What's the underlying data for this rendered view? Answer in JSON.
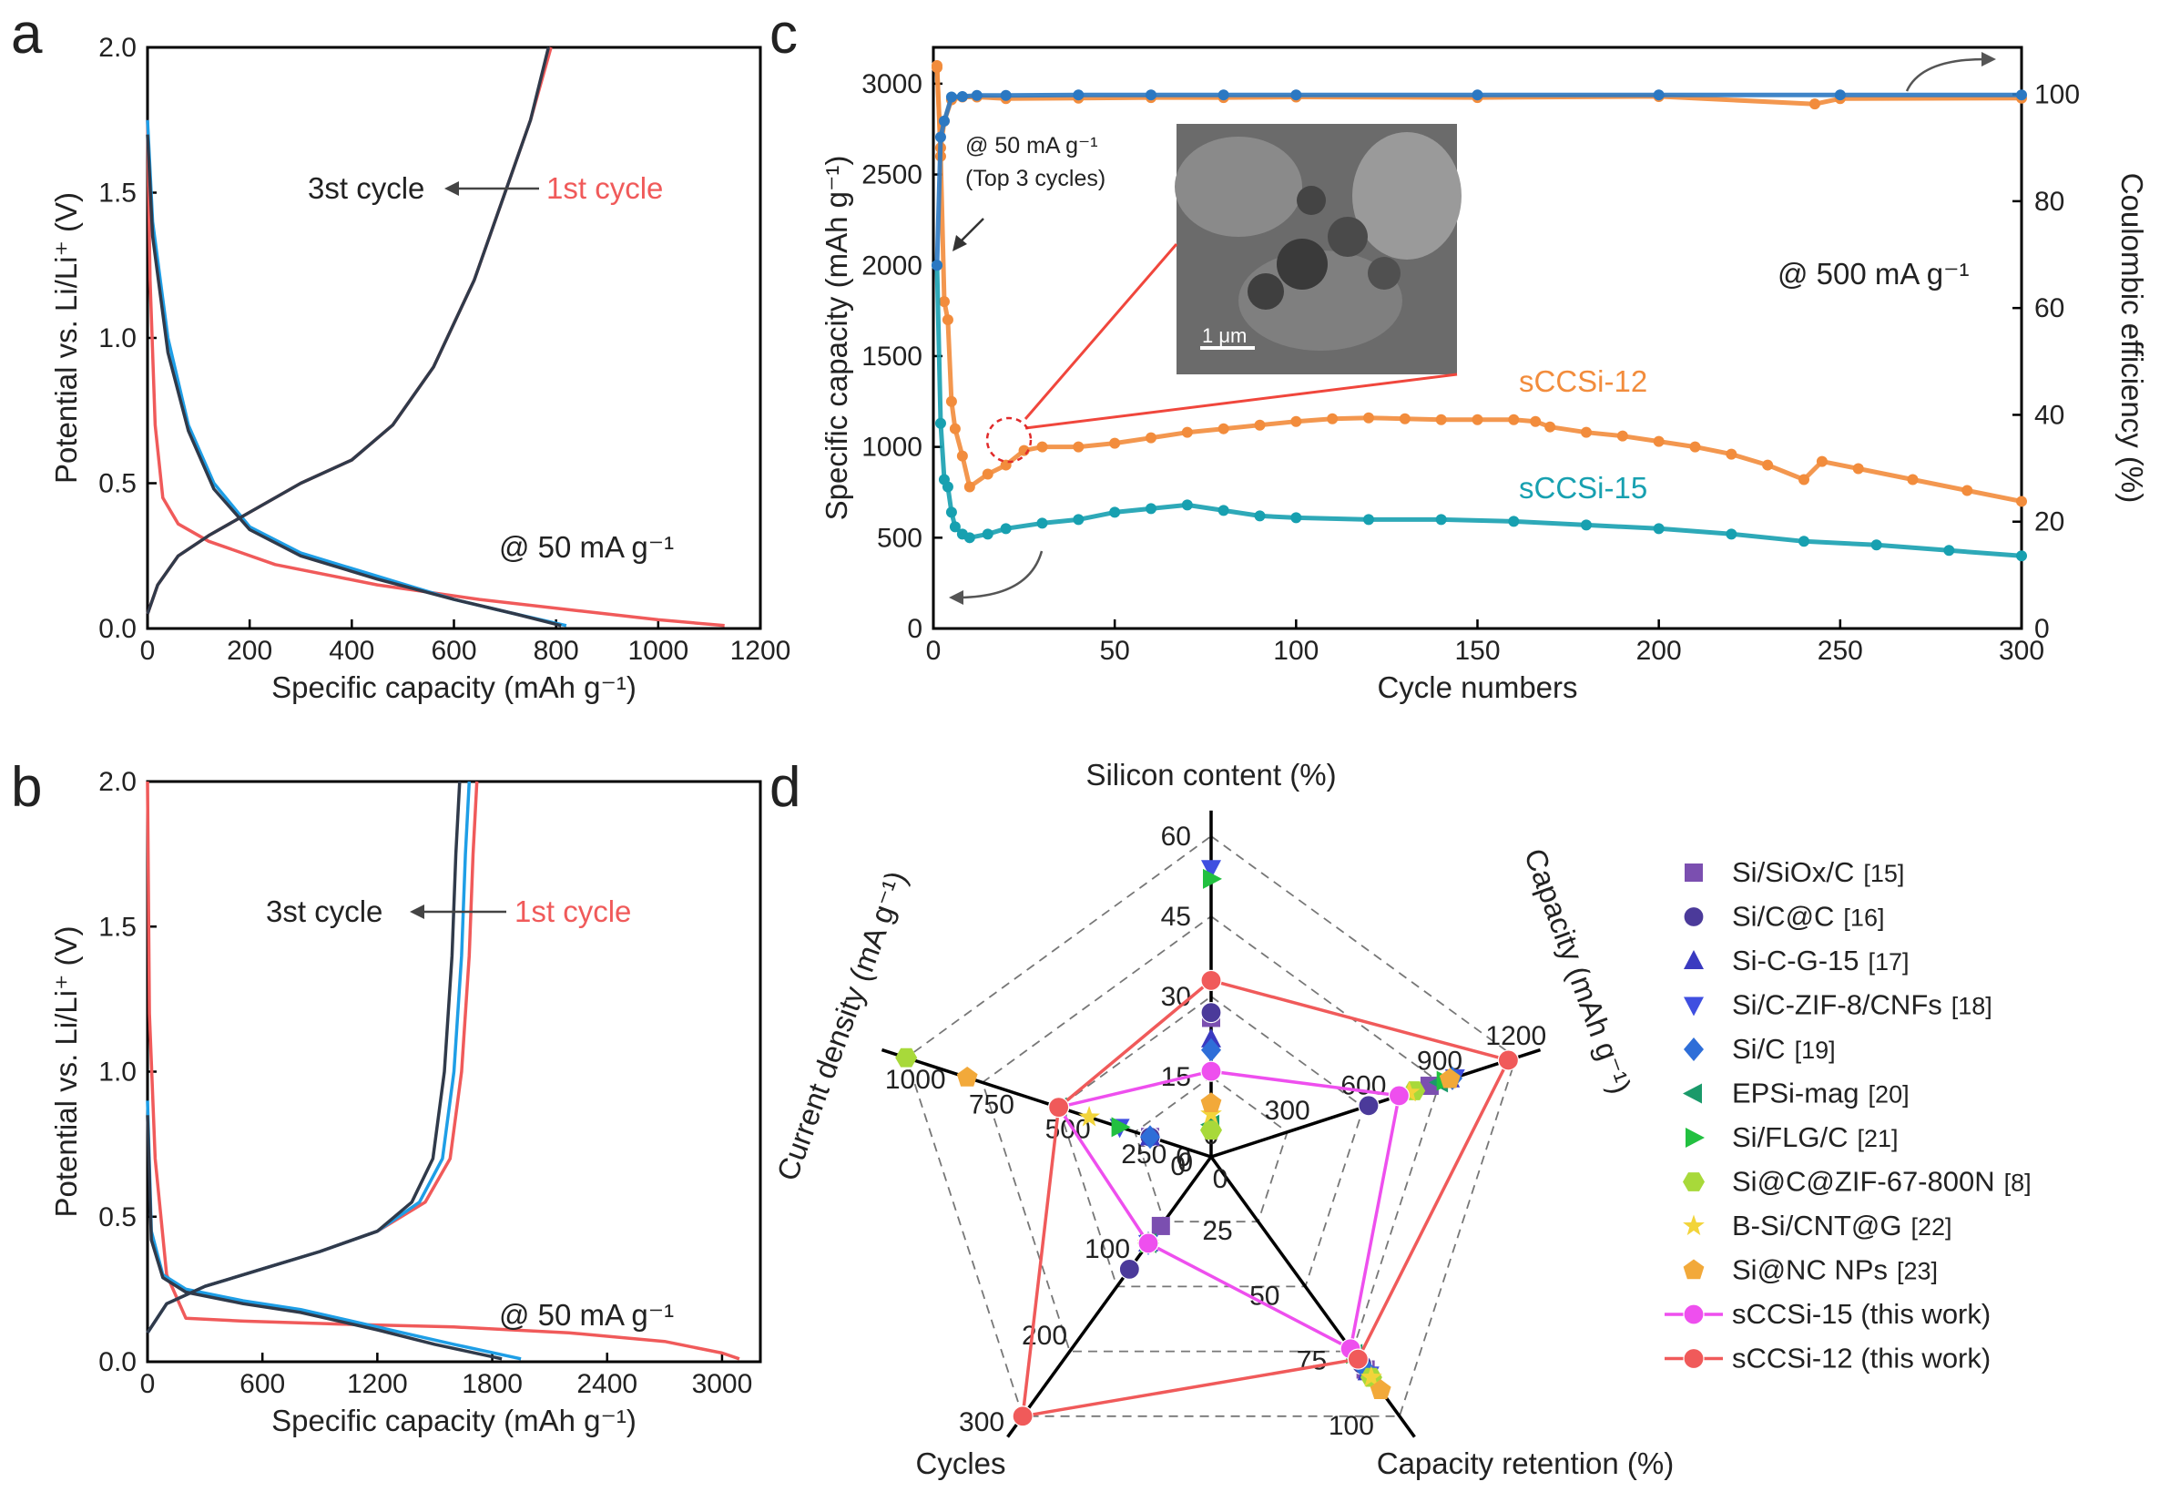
{
  "figure": {
    "panels": [
      "a",
      "b",
      "c",
      "d"
    ]
  },
  "chart_data": [
    {
      "panel": "a",
      "type": "line",
      "xlabel": "Specific capacity (mAh g⁻¹)",
      "ylabel": "Potential vs. Li/Li⁺ (V)",
      "xlim": [
        0,
        1200
      ],
      "ylim": [
        0,
        2.0
      ],
      "xticks": [
        0,
        200,
        400,
        600,
        800,
        1000,
        1200
      ],
      "xtick_labels": [
        "0",
        "200",
        "400",
        "600",
        "800",
        "1000",
        "1200"
      ],
      "yticks": [
        0.0,
        0.5,
        1.0,
        1.5,
        2.0
      ],
      "ytick_labels": [
        "0.0",
        "0.5",
        "1.0",
        "1.5",
        "2.0"
      ],
      "annotations": {
        "third": "3st cycle",
        "first": "1st cycle",
        "rate": "@ 50 mA g⁻¹"
      },
      "series": [
        {
          "name": "1st cycle discharge",
          "color": "#f05a5a",
          "x": [
            0,
            5,
            15,
            30,
            60,
            120,
            250,
            450,
            650,
            850,
            1000,
            1130
          ],
          "y": [
            1.75,
            1.2,
            0.7,
            0.45,
            0.36,
            0.3,
            0.22,
            0.15,
            0.1,
            0.06,
            0.03,
            0.01
          ]
        },
        {
          "name": "1st cycle charge",
          "color": "#f05a5a",
          "x": [
            0,
            20,
            60,
            120,
            200,
            300,
            400,
            480,
            560,
            640,
            700,
            750,
            790
          ],
          "y": [
            0.05,
            0.15,
            0.25,
            0.32,
            0.4,
            0.5,
            0.58,
            0.7,
            0.9,
            1.2,
            1.5,
            1.75,
            2.0
          ]
        },
        {
          "name": "3rd cycle discharge",
          "color": "#1e9ee6",
          "x": [
            0,
            10,
            40,
            80,
            130,
            200,
            300,
            450,
            600,
            720,
            820
          ],
          "y": [
            1.75,
            1.4,
            1.0,
            0.7,
            0.5,
            0.35,
            0.26,
            0.18,
            0.1,
            0.05,
            0.01
          ]
        },
        {
          "name": "3rd cycle charge",
          "color": "#303a4a",
          "x": [
            0,
            20,
            60,
            120,
            200,
            300,
            400,
            480,
            560,
            640,
            700,
            750,
            785
          ],
          "y": [
            0.05,
            0.15,
            0.25,
            0.32,
            0.4,
            0.5,
            0.58,
            0.7,
            0.9,
            1.2,
            1.5,
            1.75,
            2.0
          ]
        },
        {
          "name": "2nd cycle discharge",
          "color": "#303a4a",
          "x": [
            0,
            10,
            40,
            80,
            130,
            200,
            300,
            450,
            600,
            720,
            810
          ],
          "y": [
            1.7,
            1.35,
            0.95,
            0.68,
            0.48,
            0.34,
            0.25,
            0.17,
            0.1,
            0.05,
            0.01
          ]
        }
      ]
    },
    {
      "panel": "b",
      "type": "line",
      "xlabel": "Specific capacity (mAh g⁻¹)",
      "ylabel": "Potential vs. Li/Li⁺ (V)",
      "xlim": [
        0,
        3200
      ],
      "ylim": [
        0,
        2.0
      ],
      "xticks": [
        0,
        600,
        1200,
        1800,
        2400,
        3000
      ],
      "xtick_labels": [
        "0",
        "600",
        "1200",
        "1800",
        "2400",
        "3000"
      ],
      "yticks": [
        0.0,
        0.5,
        1.0,
        1.5,
        2.0
      ],
      "ytick_labels": [
        "0.0",
        "0.5",
        "1.0",
        "1.5",
        "2.0"
      ],
      "annotations": {
        "third": "3st cycle",
        "first": "1st cycle",
        "rate": "@ 50 mA g⁻¹"
      },
      "series": [
        {
          "name": "1st cycle discharge",
          "color": "#f05a5a",
          "x": [
            0,
            10,
            40,
            100,
            200,
            500,
            1000,
            1600,
            2200,
            2700,
            3000,
            3090
          ],
          "y": [
            2.0,
            1.2,
            0.7,
            0.3,
            0.15,
            0.14,
            0.13,
            0.12,
            0.1,
            0.07,
            0.03,
            0.01
          ]
        },
        {
          "name": "1st cycle charge",
          "color": "#f05a5a",
          "x": [
            0,
            100,
            300,
            600,
            900,
            1200,
            1450,
            1580,
            1640,
            1680,
            1700,
            1720
          ],
          "y": [
            0.1,
            0.2,
            0.26,
            0.32,
            0.38,
            0.45,
            0.55,
            0.7,
            1.0,
            1.4,
            1.75,
            2.0
          ]
        },
        {
          "name": "3rd cycle discharge",
          "color": "#1e9ee6",
          "x": [
            0,
            20,
            80,
            200,
            500,
            800,
            1200,
            1600,
            1950
          ],
          "y": [
            0.9,
            0.45,
            0.3,
            0.25,
            0.21,
            0.18,
            0.12,
            0.06,
            0.01
          ]
        },
        {
          "name": "3rd cycle charge",
          "color": "#1e9ee6",
          "x": [
            0,
            100,
            300,
            600,
            900,
            1200,
            1420,
            1540,
            1600,
            1640,
            1660,
            1680
          ],
          "y": [
            0.1,
            0.2,
            0.26,
            0.32,
            0.38,
            0.45,
            0.55,
            0.7,
            1.0,
            1.4,
            1.75,
            2.0
          ]
        },
        {
          "name": "2nd cycle charge",
          "color": "#303a4a",
          "x": [
            0,
            100,
            300,
            600,
            900,
            1200,
            1380,
            1490,
            1550,
            1590,
            1610,
            1630
          ],
          "y": [
            0.1,
            0.2,
            0.26,
            0.32,
            0.38,
            0.45,
            0.55,
            0.7,
            1.0,
            1.4,
            1.75,
            2.0
          ]
        },
        {
          "name": "2nd cycle discharge",
          "color": "#303a4a",
          "x": [
            0,
            20,
            80,
            200,
            500,
            800,
            1200,
            1500,
            1850
          ],
          "y": [
            0.85,
            0.42,
            0.29,
            0.24,
            0.2,
            0.17,
            0.11,
            0.06,
            0.01
          ]
        }
      ]
    },
    {
      "panel": "c",
      "type": "scatter",
      "xlabel": "Cycle numbers",
      "ylabel": "Specific capacity (mAh g⁻¹)",
      "y2label": "Coulombic efficiency (%)",
      "xlim": [
        0,
        300
      ],
      "ylim": [
        0,
        3200
      ],
      "y2lim": [
        0,
        108.8
      ],
      "xticks": [
        0,
        50,
        100,
        150,
        200,
        250,
        300
      ],
      "xtick_labels": [
        "0",
        "50",
        "100",
        "150",
        "200",
        "250",
        "300"
      ],
      "yticks": [
        0,
        500,
        1000,
        1500,
        2000,
        2500,
        3000
      ],
      "ytick_labels": [
        "0",
        "500",
        "1000",
        "1500",
        "2000",
        "2500",
        "3000"
      ],
      "y2ticks": [
        0,
        20,
        40,
        60,
        80,
        100
      ],
      "y2tick_labels": [
        "0",
        "20",
        "40",
        "60",
        "80",
        "100"
      ],
      "annotations": {
        "low_rate": "@ 50 mA g⁻¹",
        "top3": "(Top 3 cycles)",
        "high_rate": "@ 500 mA g⁻¹",
        "label_12": "sCCSi-12",
        "label_15": "sCCSi-15",
        "scale_bar": "1 μm"
      },
      "series": [
        {
          "name": "sCCSi-12 capacity",
          "color": "#f28c3c",
          "x": [
            1,
            2,
            3,
            4,
            5,
            6,
            8,
            10,
            15,
            20,
            25,
            30,
            40,
            50,
            60,
            70,
            80,
            90,
            100,
            110,
            120,
            130,
            140,
            150,
            160,
            166,
            170,
            180,
            190,
            200,
            210,
            220,
            230,
            240,
            245,
            255,
            270,
            285,
            300
          ],
          "y": [
            3100,
            2600,
            1800,
            1700,
            1250,
            1100,
            950,
            780,
            850,
            900,
            980,
            1000,
            1000,
            1020,
            1050,
            1080,
            1100,
            1120,
            1140,
            1155,
            1160,
            1155,
            1150,
            1150,
            1150,
            1140,
            1110,
            1080,
            1060,
            1030,
            1000,
            960,
            900,
            820,
            920,
            880,
            820,
            760,
            700
          ]
        },
        {
          "name": "sCCSi-15 capacity",
          "color": "#17a0b0",
          "x": [
            1,
            2,
            3,
            4,
            5,
            6,
            8,
            10,
            15,
            20,
            30,
            40,
            50,
            60,
            70,
            80,
            90,
            100,
            120,
            140,
            160,
            180,
            200,
            220,
            240,
            260,
            280,
            300
          ],
          "y": [
            2000,
            1130,
            820,
            780,
            640,
            560,
            520,
            500,
            520,
            550,
            580,
            600,
            640,
            660,
            680,
            650,
            620,
            610,
            600,
            600,
            590,
            570,
            550,
            520,
            480,
            460,
            430,
            400
          ]
        },
        {
          "name": "sCCSi-12 CE",
          "axis": "y2",
          "color": "#f28c3c",
          "x": [
            1,
            2,
            3,
            5,
            8,
            12,
            20,
            40,
            60,
            80,
            100,
            150,
            200,
            243,
            250,
            300
          ],
          "y": [
            105,
            90,
            95,
            99,
            99.5,
            99.5,
            99.2,
            99.3,
            99.4,
            99.4,
            99.5,
            99.4,
            99.6,
            98.2,
            99.2,
            99.3
          ]
        },
        {
          "name": "sCCSi-15 CE",
          "axis": "y2",
          "color": "#2b78c2",
          "x": [
            1,
            2,
            3,
            5,
            8,
            12,
            20,
            40,
            60,
            80,
            100,
            150,
            200,
            250,
            300
          ],
          "y": [
            68,
            92,
            95,
            99.5,
            99.6,
            99.8,
            99.8,
            99.9,
            99.9,
            99.9,
            99.9,
            99.9,
            99.9,
            99.9,
            99.9
          ]
        }
      ]
    },
    {
      "panel": "d",
      "type": "radar",
      "axes": [
        {
          "name": "Silicon content (%)",
          "max": 60,
          "ticks": [
            "0",
            "15",
            "30",
            "45",
            "60"
          ]
        },
        {
          "name": "Capacity (mAh g⁻¹)",
          "max": 1200,
          "ticks": [
            "0",
            "300",
            "600",
            "900",
            "1200"
          ]
        },
        {
          "name": "Capacity retention (%)",
          "max": 100,
          "ticks": [
            "0",
            "25",
            "50",
            "75",
            "100"
          ]
        },
        {
          "name": "Cycles",
          "max": 300,
          "ticks": [
            "0",
            "100",
            "200",
            "300"
          ]
        },
        {
          "name": "Current density (mA g⁻¹)",
          "max": 1000,
          "ticks": [
            "0",
            "250",
            "500",
            "750",
            "1000"
          ]
        }
      ],
      "series": [
        {
          "name": "Si/SiOx/C",
          "ref": "[15]",
          "marker": "square",
          "color": "#7b4fb0",
          "values": [
            26,
            860,
            82,
            80,
            200
          ]
        },
        {
          "name": "Si/C@C",
          "ref": "[16]",
          "marker": "circle",
          "color": "#4b3a9a",
          "values": [
            27,
            620,
            80,
            130,
            200
          ]
        },
        {
          "name": "Si-C-G-15",
          "ref": "[17]",
          "marker": "triangle-up",
          "color": "#3a3ac0",
          "values": [
            22,
            940,
            83,
            100,
            200
          ]
        },
        {
          "name": "Si/C-ZIF-8/CNFs",
          "ref": "[18]",
          "marker": "triangle-down",
          "color": "#3f4fe0",
          "values": [
            54,
            960,
            84,
            100,
            300
          ]
        },
        {
          "name": "Si/C",
          "ref": "[19]",
          "marker": "diamond",
          "color": "#2e6ed8",
          "values": [
            20,
            950,
            82,
            100,
            200
          ]
        },
        {
          "name": "EPSi-mag",
          "ref": "[20]",
          "marker": "triangle-left",
          "color": "#1a9a6a",
          "values": [
            6,
            900,
            76,
            100,
            500
          ]
        },
        {
          "name": "Si/FLG/C",
          "ref": "[21]",
          "marker": "triangle-right",
          "color": "#22c040",
          "values": [
            52,
            920,
            76,
            100,
            300
          ]
        },
        {
          "name": "Si@C@ZIF-67-800N",
          "ref": "[8]",
          "marker": "hexagon",
          "color": "#a8d93a",
          "values": [
            5,
            800,
            85,
            100,
            1000
          ]
        },
        {
          "name": "B-Si/CNT@G",
          "ref": "[22]",
          "marker": "star",
          "color": "#f2d43a",
          "values": [
            8,
            780,
            85,
            100,
            400
          ]
        },
        {
          "name": "Si@NC NPs",
          "ref": "[23]",
          "marker": "pentagon",
          "color": "#f2a93a",
          "values": [
            10,
            940,
            90,
            100,
            800
          ]
        },
        {
          "name": "sCCSi-15 (this work)",
          "marker": "circle-line",
          "color": "#ee4fee",
          "values": [
            16,
            740,
            74,
            100,
            500
          ]
        },
        {
          "name": "sCCSi-12 (this work)",
          "marker": "circle-line",
          "color": "#f05a5a",
          "values": [
            33,
            1170,
            78,
            300,
            500
          ]
        }
      ]
    }
  ]
}
